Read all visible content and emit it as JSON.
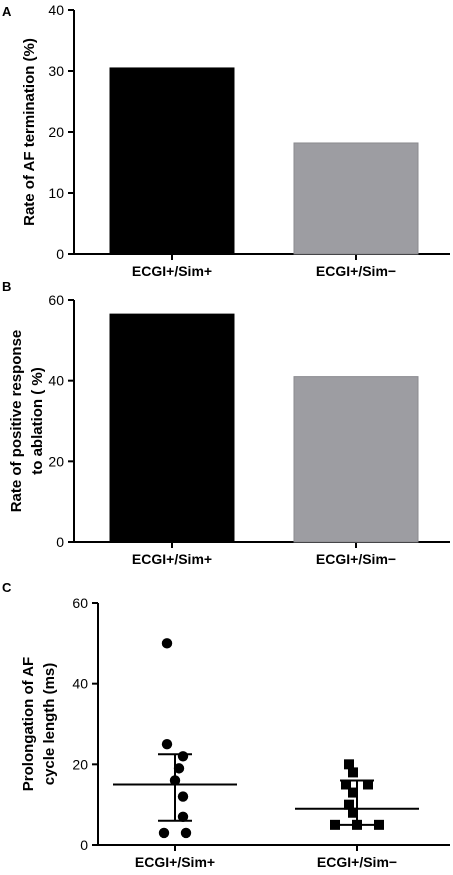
{
  "chart_data": [
    {
      "panel": "A",
      "type": "bar",
      "categories": [
        "ECGI+/Sim+",
        "ECGI+/Sim−"
      ],
      "values": [
        30.5,
        18.2
      ],
      "ylabel": "Rate of  AF termination (%)",
      "ylim": [
        0,
        40
      ],
      "yticks": [
        0,
        10,
        20,
        30,
        40
      ],
      "colors": [
        "#000000",
        "#9d9da2"
      ],
      "grid": false
    },
    {
      "panel": "B",
      "type": "bar",
      "categories": [
        "ECGI+/Sim+",
        "ECGI+/Sim−"
      ],
      "values": [
        56.5,
        41
      ],
      "ylabel_lines": [
        "Rate of positive response",
        "to ablation ( %)"
      ],
      "ylim": [
        0,
        60
      ],
      "yticks": [
        0,
        20,
        40,
        60
      ],
      "colors": [
        "#000000",
        "#9d9da2"
      ],
      "grid": false
    },
    {
      "panel": "C",
      "type": "scatter",
      "categories": [
        "ECGI+/Sim+",
        "ECGI+/Sim−"
      ],
      "series": [
        {
          "marker": "circle",
          "values": [
            50,
            25,
            22,
            19,
            16,
            12,
            7,
            3,
            3
          ],
          "mean": 15,
          "error_high": 22.5,
          "error_low": 6
        },
        {
          "marker": "square",
          "values": [
            20,
            18,
            15,
            15,
            13,
            10,
            8,
            5,
            5,
            5
          ],
          "mean": 9,
          "error_high": 16,
          "error_low": 5
        }
      ],
      "ylabel_lines": [
        "Prolongation of  AF",
        "cycle length (ms)"
      ],
      "ylim": [
        0,
        60
      ],
      "yticks": [
        0,
        20,
        40,
        60
      ],
      "grid": false
    }
  ]
}
